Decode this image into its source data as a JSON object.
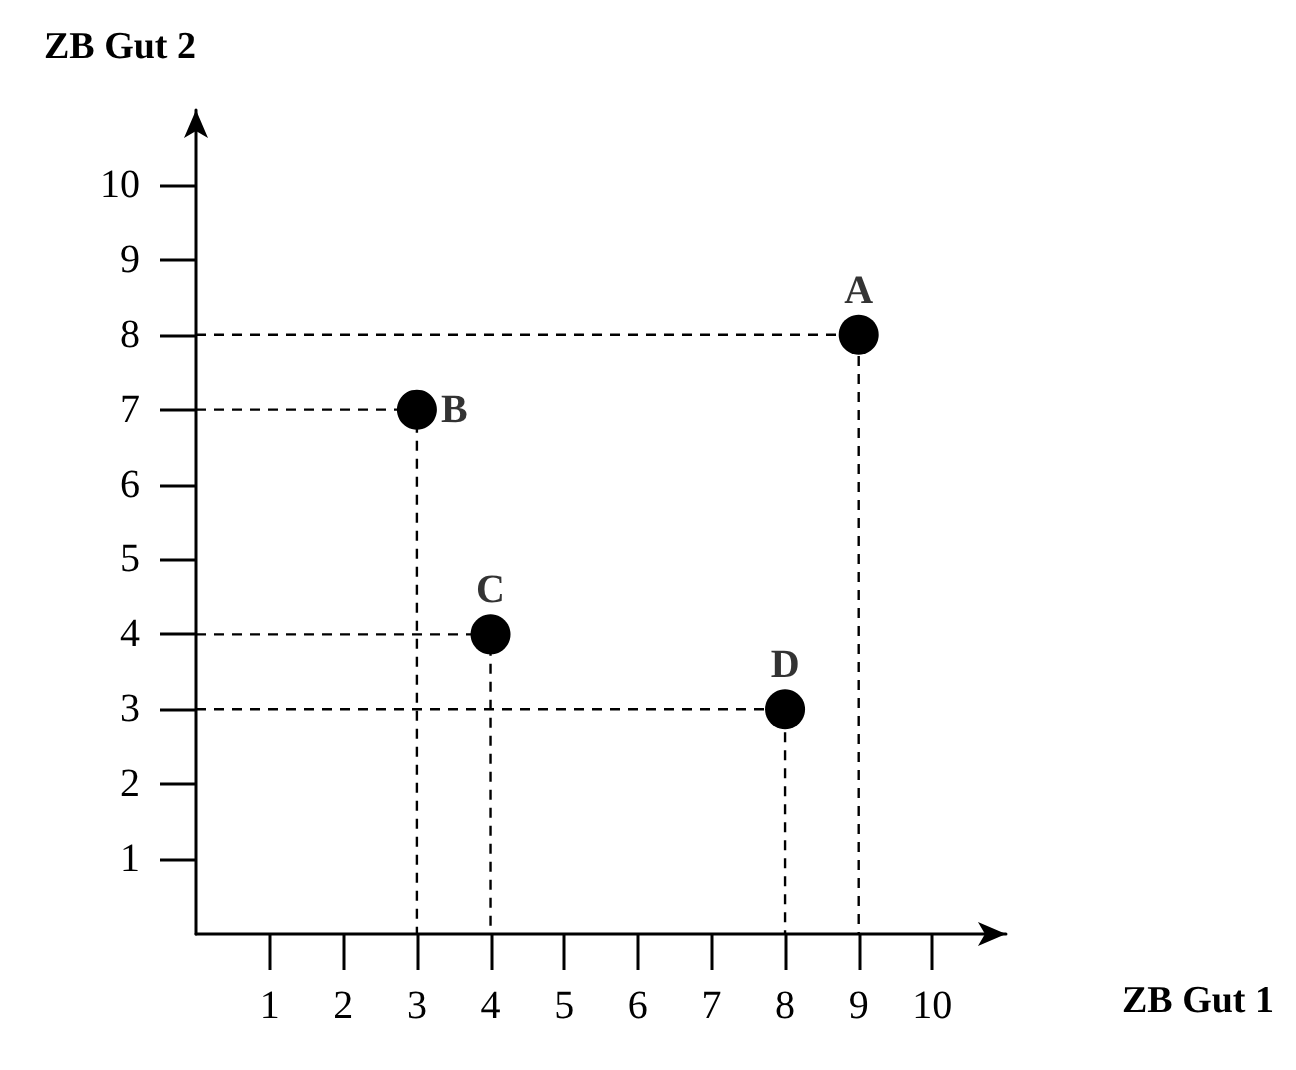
{
  "chart_data": {
    "type": "scatter",
    "xlabel": "ZB Gut 1",
    "ylabel": "ZB Gut 2",
    "grid": false,
    "series": [
      {
        "type": "line",
        "x": [
          0,
          9,
          9
        ],
        "values": [
          8,
          8,
          0
        ],
        "color": "#000000",
        "line_style": "dashed",
        "marker": "none"
      },
      {
        "type": "line",
        "x": [
          0,
          3,
          3
        ],
        "values": [
          7,
          7,
          0
        ],
        "color": "#000000",
        "line_style": "dashed",
        "marker": "none"
      },
      {
        "type": "line",
        "x": [
          0,
          4,
          4
        ],
        "values": [
          4,
          4,
          0
        ],
        "color": "#000000",
        "line_style": "dashed",
        "marker": "none"
      },
      {
        "type": "line",
        "x": [
          0,
          8,
          8
        ],
        "values": [
          3,
          3,
          0
        ],
        "color": "#000000",
        "line_style": "dashed",
        "marker": "none"
      },
      {
        "x": [
          9,
          3,
          4,
          8
        ],
        "values": [
          8,
          7,
          4,
          3
        ],
        "color": "#000000",
        "marker": "circle"
      }
    ],
    "xlim": [
      0,
      11
    ],
    "xticks": [
      1,
      2,
      3,
      4,
      5,
      6,
      7,
      8,
      9,
      10
    ],
    "ylim": [
      0,
      11
    ],
    "yticks": [
      1,
      2,
      3,
      4,
      5,
      6,
      7,
      8,
      9,
      10
    ],
    "annotations": [
      {
        "text": "A",
        "x": 9,
        "y": 8
      },
      {
        "text": "B",
        "x": 3,
        "y": 7
      },
      {
        "text": "C",
        "x": 4,
        "y": 4
      },
      {
        "text": "D",
        "x": 8,
        "y": 3
      }
    ]
  }
}
